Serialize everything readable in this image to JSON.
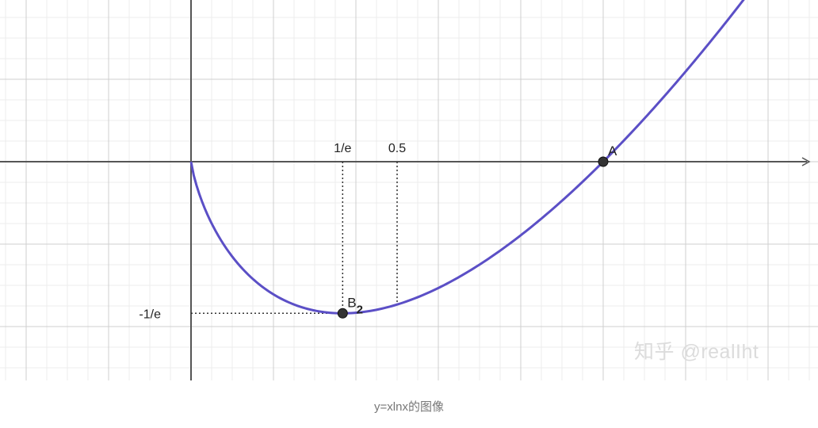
{
  "chart_data": {
    "type": "line",
    "title": "",
    "xlabel": "",
    "ylabel": "",
    "xlim": [
      -1.15,
      3.75
    ],
    "ylim": [
      -1.32,
      0.88
    ],
    "grid": true,
    "x_tick_labels": [
      {
        "x": 0.3679,
        "label": "1/e"
      },
      {
        "x": 0.5,
        "label": "0.5"
      }
    ],
    "y_tick_labels": [
      {
        "y": -0.3679,
        "label": "-1/e"
      }
    ],
    "series": [
      {
        "name": "",
        "color": "#5b4fc6",
        "function": "x*ln(x)",
        "x_range": [
          0,
          3.3
        ]
      }
    ],
    "points": [
      {
        "label": "A",
        "x": 1,
        "y": 0
      },
      {
        "label": "B",
        "subscript": "2",
        "x": 0.3679,
        "y": -0.3679
      }
    ],
    "guides": [
      {
        "from": [
          0.3679,
          0
        ],
        "to": [
          0.3679,
          -0.3679
        ]
      },
      {
        "from": [
          0.5,
          0
        ],
        "to": [
          0.5,
          -0.3466
        ]
      },
      {
        "from": [
          0,
          -0.3679
        ],
        "to": [
          0.3679,
          -0.3679
        ]
      }
    ]
  },
  "watermark": "知乎 @realIht",
  "caption": "y=xlnx的图像"
}
